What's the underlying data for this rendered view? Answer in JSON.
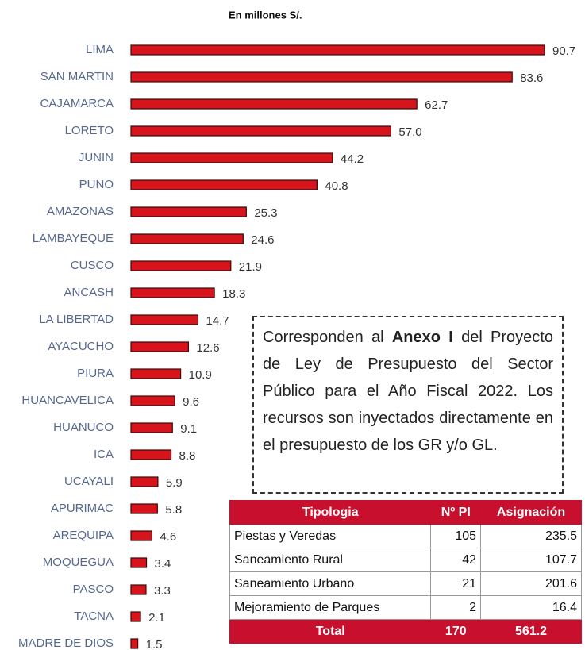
{
  "chart_data": {
    "type": "barh",
    "subtitle": "En millones S/.",
    "categories": [
      "LIMA",
      "SAN MARTIN",
      "CAJAMARCA",
      "LORETO",
      "JUNIN",
      "PUNO",
      "AMAZONAS",
      "LAMBAYEQUE",
      "CUSCO",
      "ANCASH",
      "LA LIBERTAD",
      "AYACUCHO",
      "PIURA",
      "HUANCAVELICA",
      "HUANUCO",
      "ICA",
      "UCAYALI",
      "APURIMAC",
      "AREQUIPA",
      "MOQUEGUA",
      "PASCO",
      "TACNA",
      "MADRE DE DIOS"
    ],
    "values": [
      90.7,
      83.6,
      62.7,
      57.0,
      44.2,
      40.8,
      25.3,
      24.6,
      21.9,
      18.3,
      14.7,
      12.6,
      10.9,
      9.6,
      9.1,
      8.8,
      5.9,
      5.8,
      4.6,
      3.4,
      3.3,
      2.1,
      1.5
    ],
    "value_labels": [
      "90.7",
      "83.6",
      "62.7",
      "57.0",
      "44.2",
      "40.8",
      "25.3",
      "24.6",
      "21.9",
      "18.3",
      "14.7",
      "12.6",
      "10.9",
      "9.6",
      "9.1",
      "8.8",
      "5.9",
      "5.8",
      "4.6",
      "3.4",
      "3.3",
      "2.1",
      "1.5"
    ],
    "color": "#d7141c"
  },
  "annotation": [
    "Corresponden al ",
    "Anexo I",
    " del Proyecto de Ley de Presupuesto del Sector Público para el Año Fiscal 2022. Los recursos son inyectados directamente en el presupuesto de los GR y/o GL."
  ],
  "table": {
    "header": [
      "Tipologia",
      "Nº PI",
      "Asignación"
    ],
    "rows": [
      [
        "Piestas y Veredas",
        105,
        235.5
      ],
      [
        "Saneamiento Rural",
        42,
        107.7
      ],
      [
        "Saneamiento Urbano",
        21,
        201.6
      ],
      [
        "Mejoramiento de Parques",
        2,
        16.4
      ]
    ],
    "total": [
      "Total",
      170,
      561.2
    ]
  }
}
